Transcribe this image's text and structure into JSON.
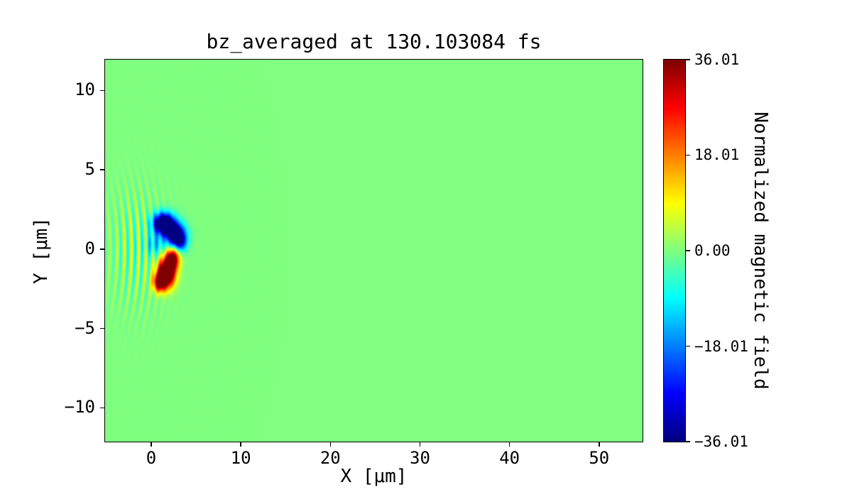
{
  "figure": {
    "background_color": "#ffffff",
    "text_color": "#000000"
  },
  "chart_data": {
    "type": "heatmap",
    "title": "bz_averaged at 130.103084 fs",
    "colormap": "jet",
    "vmin": -36.01,
    "vmax": 36.01,
    "xlim": [
      -5.15,
      54.85
    ],
    "ylim": [
      -12.13,
      11.94
    ],
    "grid": false,
    "x_axis": {
      "label": "X [μm]",
      "tick_values": [
        0,
        10,
        20,
        30,
        40,
        50
      ],
      "tick_labels": [
        "0",
        "10",
        "20",
        "30",
        "40",
        "50"
      ]
    },
    "y_axis": {
      "label": "Y [μm]",
      "tick_values": [
        10,
        5,
        0,
        -5,
        -10
      ],
      "tick_labels": [
        "10",
        "5",
        "0",
        "−5",
        "−10"
      ]
    },
    "colorbar": {
      "label": "Normalized magnetic field",
      "tick_values": [
        36.01,
        18.01,
        0.0,
        -18.01,
        -36.01
      ],
      "tick_labels": [
        "36.01",
        "18.01",
        "0.00",
        "−18.01",
        "−36.01"
      ]
    },
    "field_model": {
      "description": "Field is ~0 (green) everywhere except a bipolar structure near x=0-4 μm: a negative (blue, ~-36) lobe above y=0, a positive (red, ~+36) lobe below y=0, plus weak ripple wavefronts for x<1.5 μm, |y|<5 μm.",
      "background_value": 0,
      "gaussians": [
        {
          "amp": -55,
          "cx": 1.4,
          "cy": 1.6,
          "sx": 0.8,
          "sy": 0.45
        },
        {
          "amp": -45,
          "cx": 2.7,
          "cy": 0.9,
          "sx": 0.75,
          "sy": 0.5
        },
        {
          "amp": -18,
          "cx": 3.3,
          "cy": 0.4,
          "sx": 0.5,
          "sy": 0.4
        },
        {
          "amp": -12,
          "cx": 0.4,
          "cy": 0.3,
          "sx": 0.7,
          "sy": 0.5
        },
        {
          "amp": 60,
          "cx": 1.7,
          "cy": -1.5,
          "sx": 0.65,
          "sy": 0.6
        },
        {
          "amp": 40,
          "cx": 2.4,
          "cy": -0.6,
          "sx": 0.5,
          "sy": 0.45
        },
        {
          "amp": 34,
          "cx": 0.9,
          "cy": -2.1,
          "sx": 0.5,
          "sy": 0.4
        }
      ],
      "ripple": {
        "amp": 11,
        "cx": -1.6,
        "sx": 2.0,
        "sy": 2.4,
        "wavelength": 0.8,
        "curvature_radius": 12
      }
    }
  }
}
